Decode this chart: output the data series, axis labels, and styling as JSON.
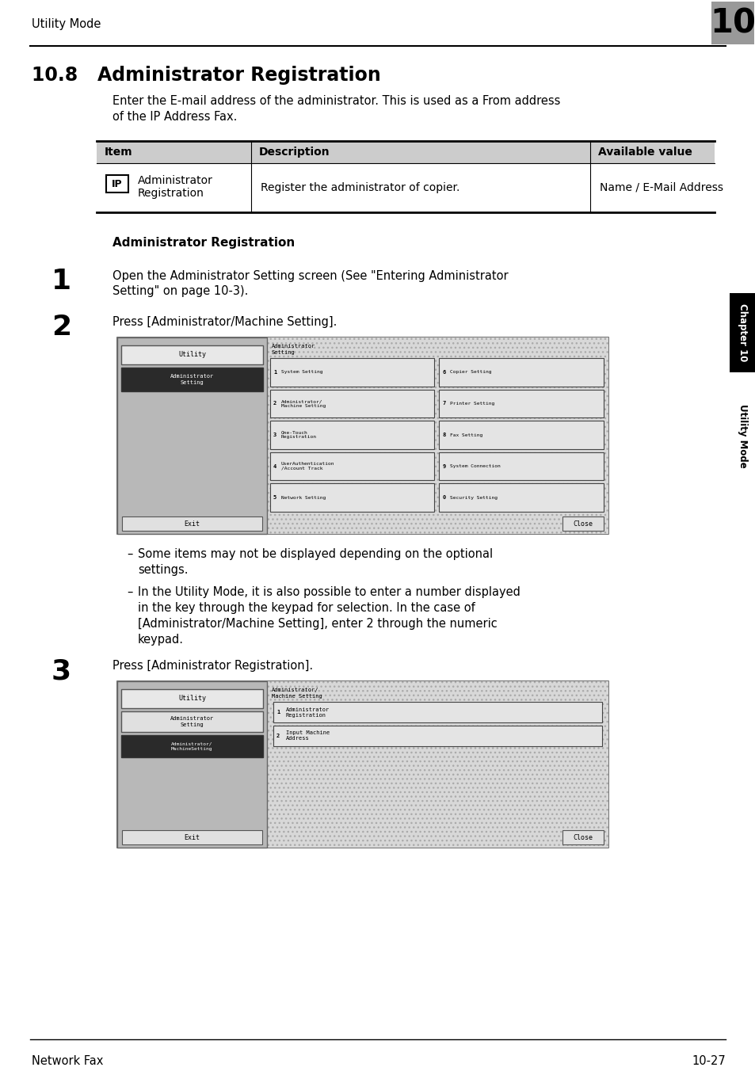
{
  "title_header": "Utility Mode",
  "chapter_num": "10",
  "section_title": "10.8   Administrator Registration",
  "intro_line1": "Enter the E-mail address of the administrator. This is used as a From address",
  "intro_line2": "of the IP Address Fax.",
  "table_headers": [
    "Item",
    "Description",
    "Available value"
  ],
  "table_row_icon": "IP",
  "table_row_item1": "Administrator",
  "table_row_item2": "Registration",
  "table_row_desc": "Register the administrator of copier.",
  "table_row_avail": "Name / E-Mail Address",
  "subsection_title": "Administrator Registration",
  "step1_num": "1",
  "step1_line1": "Open the Administrator Setting screen (See \"Entering Administrator",
  "step1_line2": "Setting\" on page 10-3).",
  "step2_num": "2",
  "step2_text": "Press [Administrator/Machine Setting].",
  "step3_num": "3",
  "step3_text": "Press [Administrator Registration].",
  "bullet1_dash": "–",
  "bullet1_line1": "Some items may not be displayed depending on the optional",
  "bullet1_line2": "settings.",
  "bullet2_dash": "–",
  "bullet2_line1": "In the Utility Mode, it is also possible to enter a number displayed",
  "bullet2_line2": "in the key through the keypad for selection. In the case of",
  "bullet2_line3": "[Administrator/Machine Setting], enter 2 through the numeric",
  "bullet2_line4": "keypad.",
  "footer_left": "Network Fax",
  "footer_right": "10-27",
  "bg_color": "#ffffff",
  "chapter_tab_bg": "#888888",
  "screen1_btn_left": [
    "System Setting",
    "Administrator/\nMachine Setting",
    "One-Touch\nRegistration",
    "UserAuthentication\n/Account Track",
    "Network Setting"
  ],
  "screen1_num_left": [
    "1",
    "2",
    "3",
    "4",
    "5"
  ],
  "screen1_btn_right": [
    "Copier Setting",
    "Printer Setting",
    "Fax Setting",
    "System Connection",
    "Security Setting"
  ],
  "screen1_num_right": [
    "6",
    "7",
    "8",
    "9",
    "0"
  ],
  "screen1_title_line1": "Administrator",
  "screen1_title_line2": "Setting",
  "screen2_title_line1": "Administrator/",
  "screen2_title_line2": "Machine Setting",
  "screen2_btn1_num": "1",
  "screen2_btn1_label1": "Administrator",
  "screen2_btn1_label2": "Registration",
  "screen2_btn2_num": "2",
  "screen2_btn2_label1": "Input Machine",
  "screen2_btn2_label2": "Address"
}
